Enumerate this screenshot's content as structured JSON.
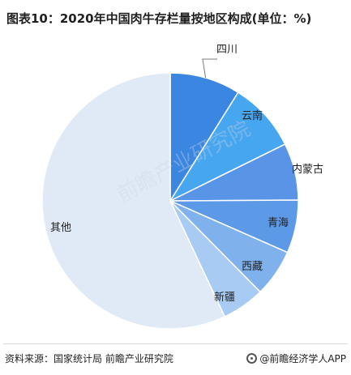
{
  "title": "图表10：2020年中国肉牛存栏量按地区构成(单位：%)",
  "footer": {
    "source": "资料来源：国家统计局 前瞻产业研究院",
    "brand": "@前瞻经济学人APP"
  },
  "watermark": "前瞻产业研究院",
  "colors": {
    "slices": [
      "#3a86e0",
      "#47a6f0",
      "#5a94e6",
      "#5c9ae8",
      "#7fb1ec",
      "#a8cbf3",
      "#dfeaf6"
    ],
    "leader": "#7b7b7b",
    "label": "#222222"
  },
  "chart_data": {
    "type": "pie",
    "title": "图表10：2020年中国肉牛存栏量按地区构成(单位：%)",
    "categories": [
      "四川",
      "云南",
      "内蒙古",
      "青海",
      "西藏",
      "新疆",
      "其他"
    ],
    "values": [
      8.9,
      8.8,
      7.2,
      6.7,
      6.0,
      5.4,
      57.0
    ],
    "unit": "%",
    "legend": "none",
    "start": "12 o'clock",
    "direction": "clockwise"
  }
}
